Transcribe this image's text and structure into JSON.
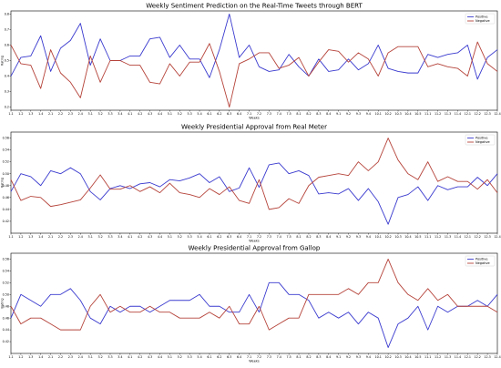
{
  "chart_data": [
    {
      "type": "line",
      "title": "Weekly Sentiment Prediction on the Real-Time Tweets through BERT",
      "xlabel": "Weeks",
      "ylabel": "Rating",
      "ylim": [
        0.18,
        0.82
      ],
      "yticks": [
        "0.2",
        "0.3",
        "0.4",
        "0.5",
        "0.6",
        "0.7",
        "0.8"
      ],
      "ytick_values": [
        0.2,
        0.3,
        0.4,
        0.5,
        0.6,
        0.7,
        0.8
      ],
      "categories": [
        "1.1",
        "1.2",
        "1.3",
        "1.4",
        "2.1",
        "2.2",
        "2.3",
        "2.4",
        "3.1",
        "3.2",
        "3.3",
        "3.4",
        "4.1",
        "4.2",
        "4.3",
        "4.4",
        "5.1",
        "5.2",
        "5.3",
        "5.4",
        "6.1",
        "6.2",
        "6.3",
        "6.4",
        "7.1",
        "7.2",
        "7.3",
        "7.4",
        "7.5",
        "8.1",
        "8.2",
        "8.3",
        "8.4",
        "9.1",
        "9.2",
        "9.3",
        "9.4",
        "10.1",
        "10.2",
        "10.3",
        "10.4",
        "10.5",
        "11.1",
        "11.2",
        "11.3",
        "11.4",
        "12.1",
        "12.2",
        "12.3",
        "12.4"
      ],
      "legend_position": "top-right",
      "series": [
        {
          "name": "Positive",
          "color": "#3a3acf",
          "values": [
            0.4,
            0.52,
            0.53,
            0.66,
            0.43,
            0.58,
            0.63,
            0.74,
            0.47,
            0.64,
            0.5,
            0.5,
            0.53,
            0.53,
            0.64,
            0.65,
            0.52,
            0.6,
            0.51,
            0.51,
            0.39,
            0.57,
            0.8,
            0.52,
            0.6,
            0.46,
            0.43,
            0.44,
            0.54,
            0.46,
            0.4,
            0.51,
            0.43,
            0.44,
            0.51,
            0.44,
            0.48,
            0.6,
            0.45,
            0.43,
            0.42,
            0.42,
            0.54,
            0.52,
            0.54,
            0.55,
            0.6,
            0.38,
            0.52,
            0.57
          ]
        },
        {
          "name": "Negative",
          "color": "#b5433a",
          "values": [
            0.6,
            0.48,
            0.47,
            0.32,
            0.57,
            0.42,
            0.36,
            0.26,
            0.53,
            0.36,
            0.5,
            0.5,
            0.47,
            0.47,
            0.36,
            0.35,
            0.48,
            0.4,
            0.49,
            0.49,
            0.61,
            0.43,
            0.2,
            0.48,
            0.51,
            0.55,
            0.55,
            0.45,
            0.47,
            0.52,
            0.4,
            0.49,
            0.57,
            0.56,
            0.49,
            0.55,
            0.51,
            0.4,
            0.55,
            0.59,
            0.59,
            0.59,
            0.46,
            0.48,
            0.46,
            0.45,
            0.4,
            0.62,
            0.48,
            0.43
          ]
        }
      ]
    },
    {
      "type": "line",
      "title": "Weekly Presidential Approval from Real Meter",
      "xlabel": "Weeks",
      "ylabel": "Rating",
      "ylim": [
        0.4,
        0.57
      ],
      "yticks": [
        "0.42",
        "0.44",
        "0.46",
        "0.48",
        "0.50",
        "0.52",
        "0.54",
        "0.56"
      ],
      "ytick_values": [
        0.42,
        0.44,
        0.46,
        0.48,
        0.5,
        0.52,
        0.54,
        0.56
      ],
      "categories": [
        "1.1",
        "1.2",
        "1.3",
        "1.4",
        "2.1",
        "2.2",
        "2.3",
        "2.4",
        "3.1",
        "3.2",
        "3.3",
        "3.4",
        "4.1",
        "4.2",
        "4.3",
        "4.4",
        "5.1",
        "5.2",
        "5.3",
        "5.4",
        "6.1",
        "6.2",
        "6.3",
        "6.4",
        "7.1",
        "7.2",
        "7.3",
        "7.4",
        "7.5",
        "8.1",
        "8.2",
        "8.3",
        "8.4",
        "9.1",
        "9.2",
        "9.3",
        "9.4",
        "10.1",
        "10.2",
        "10.3",
        "10.4",
        "10.5",
        "11.1",
        "11.2",
        "11.3",
        "11.4",
        "12.1",
        "12.2",
        "12.3",
        "12.4"
      ],
      "legend_position": "top-right",
      "series": [
        {
          "name": "Positive",
          "color": "#3a3acf",
          "values": [
            0.47,
            0.5,
            0.495,
            0.48,
            0.505,
            0.5,
            0.51,
            0.5,
            0.47,
            0.456,
            0.475,
            0.48,
            0.475,
            0.483,
            0.485,
            0.478,
            0.49,
            0.488,
            0.493,
            0.5,
            0.485,
            0.495,
            0.47,
            0.476,
            0.51,
            0.477,
            0.515,
            0.518,
            0.5,
            0.505,
            0.497,
            0.466,
            0.468,
            0.466,
            0.475,
            0.455,
            0.475,
            0.453,
            0.415,
            0.46,
            0.465,
            0.478,
            0.455,
            0.48,
            0.473,
            0.478,
            0.478,
            0.494,
            0.48,
            0.5
          ]
        },
        {
          "name": "Negative",
          "color": "#b5433a",
          "values": [
            0.49,
            0.455,
            0.462,
            0.46,
            0.445,
            0.448,
            0.452,
            0.456,
            0.476,
            0.498,
            0.474,
            0.474,
            0.48,
            0.47,
            0.478,
            0.468,
            0.484,
            0.468,
            0.465,
            0.46,
            0.475,
            0.465,
            0.478,
            0.455,
            0.45,
            0.49,
            0.44,
            0.443,
            0.458,
            0.45,
            0.48,
            0.494,
            0.497,
            0.5,
            0.497,
            0.52,
            0.505,
            0.52,
            0.56,
            0.523,
            0.5,
            0.49,
            0.52,
            0.487,
            0.495,
            0.487,
            0.487,
            0.474,
            0.49,
            0.468
          ]
        }
      ]
    },
    {
      "type": "line",
      "title": "Weekly Presidential Approval from Gallop",
      "xlabel": "Weeks",
      "ylabel": "Rating",
      "ylim": [
        0.4,
        0.57
      ],
      "yticks": [
        "0.42",
        "0.44",
        "0.46",
        "0.48",
        "0.50",
        "0.52",
        "0.54",
        "0.56"
      ],
      "ytick_values": [
        0.42,
        0.44,
        0.46,
        0.48,
        0.5,
        0.52,
        0.54,
        0.56
      ],
      "categories": [
        "1.1",
        "1.2",
        "1.3",
        "1.4",
        "2.1",
        "2.2",
        "2.3",
        "2.4",
        "3.1",
        "3.2",
        "3.3",
        "3.4",
        "4.1",
        "4.2",
        "4.3",
        "4.4",
        "5.1",
        "5.2",
        "5.3",
        "5.4",
        "6.1",
        "6.2",
        "6.3",
        "6.4",
        "7.1",
        "7.2",
        "7.3",
        "7.4",
        "7.5",
        "8.1",
        "8.2",
        "8.3",
        "8.4",
        "9.1",
        "9.2",
        "9.3",
        "9.4",
        "10.1",
        "10.2",
        "10.3",
        "10.4",
        "10.5",
        "11.1",
        "11.2",
        "11.3",
        "11.4",
        "12.1",
        "12.2",
        "12.3",
        "12.4"
      ],
      "legend_position": "top-right",
      "series": [
        {
          "name": "Positive",
          "color": "#3a3acf",
          "values": [
            0.46,
            0.5,
            0.49,
            0.48,
            0.5,
            0.5,
            0.51,
            0.49,
            0.46,
            0.45,
            0.48,
            0.47,
            0.48,
            0.48,
            0.47,
            0.48,
            0.49,
            0.49,
            0.49,
            0.5,
            0.48,
            0.48,
            0.47,
            0.47,
            0.5,
            0.47,
            0.52,
            0.52,
            0.5,
            0.5,
            0.49,
            0.46,
            0.47,
            0.46,
            0.47,
            0.45,
            0.47,
            0.46,
            0.41,
            0.45,
            0.46,
            0.48,
            0.44,
            0.48,
            0.47,
            0.48,
            0.48,
            0.49,
            0.48,
            0.5
          ]
        },
        {
          "name": "Negative",
          "color": "#b5433a",
          "values": [
            0.48,
            0.45,
            0.46,
            0.46,
            0.45,
            0.44,
            0.44,
            0.44,
            0.48,
            0.5,
            0.47,
            0.48,
            0.47,
            0.47,
            0.48,
            0.47,
            0.47,
            0.46,
            0.46,
            0.46,
            0.47,
            0.46,
            0.48,
            0.45,
            0.45,
            0.48,
            0.44,
            0.45,
            0.46,
            0.46,
            0.5,
            0.5,
            0.5,
            0.5,
            0.51,
            0.5,
            0.52,
            0.52,
            0.56,
            0.52,
            0.5,
            0.49,
            0.51,
            0.49,
            0.5,
            0.48,
            0.48,
            0.48,
            0.48,
            0.47
          ]
        }
      ]
    }
  ]
}
